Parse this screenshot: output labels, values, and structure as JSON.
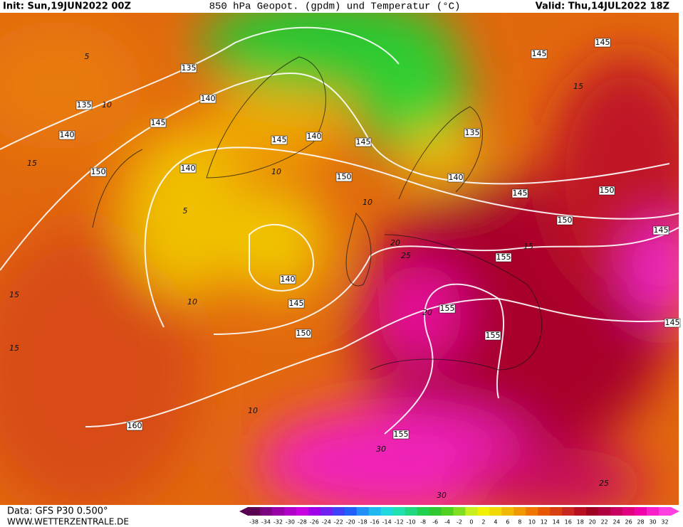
{
  "header": {
    "init": "Init: Sun,19JUN2022 00Z",
    "title": "850 hPa Geopot. (gpdm) und Temperatur (°C)",
    "valid": "Valid: Thu,14JUL2022 18Z"
  },
  "geopotential_labels": [
    135,
    135,
    140,
    145,
    140,
    150,
    140,
    145,
    140,
    145,
    150,
    135,
    140,
    145,
    145,
    145,
    150,
    150,
    145,
    155,
    155,
    155,
    140,
    145,
    150,
    160,
    155,
    145
  ],
  "temperature_labels": [
    5,
    10,
    5,
    10,
    15,
    10,
    10,
    20,
    25,
    15,
    15,
    10,
    20,
    30,
    30,
    25,
    15,
    15
  ],
  "colorbar": {
    "labels": [
      -38,
      -34,
      -32,
      -30,
      -28,
      -26,
      -24,
      -22,
      -20,
      -18,
      -16,
      -14,
      -12,
      -10,
      -8,
      -6,
      -4,
      -2,
      0,
      2,
      4,
      6,
      8,
      10,
      12,
      14,
      16,
      18,
      20,
      22,
      24,
      26,
      28,
      30,
      32
    ],
    "colors": [
      "#5a0050",
      "#7a0080",
      "#9a00a8",
      "#b000c8",
      "#c800e0",
      "#a000e8",
      "#7020f0",
      "#4040f8",
      "#2060f8",
      "#2090f8",
      "#20b8f0",
      "#20d8e0",
      "#20e0b0",
      "#20d880",
      "#20d050",
      "#30c830",
      "#50d020",
      "#80e020",
      "#c8f020",
      "#f0f000",
      "#f0d800",
      "#f0b800",
      "#f09800",
      "#f07800",
      "#e85800",
      "#d84010",
      "#c82820",
      "#b81020",
      "#a00020",
      "#b00040",
      "#c80060",
      "#e00080",
      "#f000a8",
      "#f820c8",
      "#ff40e0"
    ]
  },
  "footer": {
    "source": "Data: GFS P30 0.500°",
    "site": "WWW.WETTERZENTRALE.DE"
  }
}
